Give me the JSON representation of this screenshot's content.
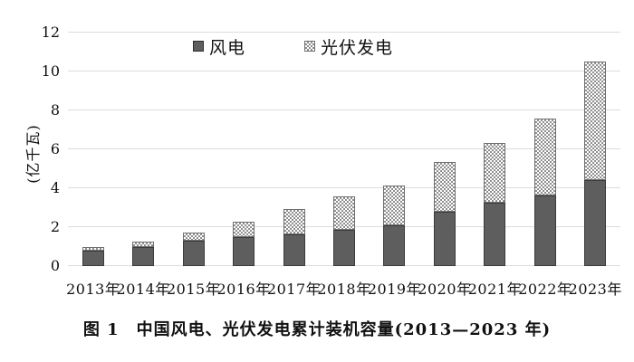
{
  "figure": {
    "caption": "图 1　中国风电、光伏发电累计装机容量(2013—2023 年)"
  },
  "legend": {
    "wind_label": "风电",
    "solar_label": "光伏发电"
  },
  "colors": {
    "wind_bar": "#5e5e5e",
    "solar_checker": "#8f8f8f",
    "gridline": "#dcdcdc",
    "text": "#111111"
  },
  "chart_data": {
    "type": "bar",
    "stacked": true,
    "title": "图 1　中国风电、光伏发电累计装机容量(2013—2023 年)",
    "ylabel": "(亿千瓦)",
    "xlabel": "",
    "ylim": [
      0,
      12
    ],
    "yticks": [
      0,
      2,
      4,
      6,
      8,
      10,
      12
    ],
    "grid": true,
    "legend_position": "top-center",
    "categories": [
      "2013年",
      "2014年",
      "2015年",
      "2016年",
      "2017年",
      "2018年",
      "2019年",
      "2020年",
      "2021年",
      "2022年",
      "2023年"
    ],
    "series": [
      {
        "name": "风电",
        "style": "solid-dark-gray",
        "values": [
          0.77,
          0.96,
          1.29,
          1.49,
          1.64,
          1.84,
          2.1,
          2.81,
          3.28,
          3.65,
          4.41
        ]
      },
      {
        "name": "光伏发电",
        "style": "checker-pattern",
        "values": [
          0.19,
          0.28,
          0.43,
          0.77,
          1.3,
          1.74,
          2.04,
          2.53,
          3.06,
          3.93,
          6.09
        ]
      }
    ]
  }
}
